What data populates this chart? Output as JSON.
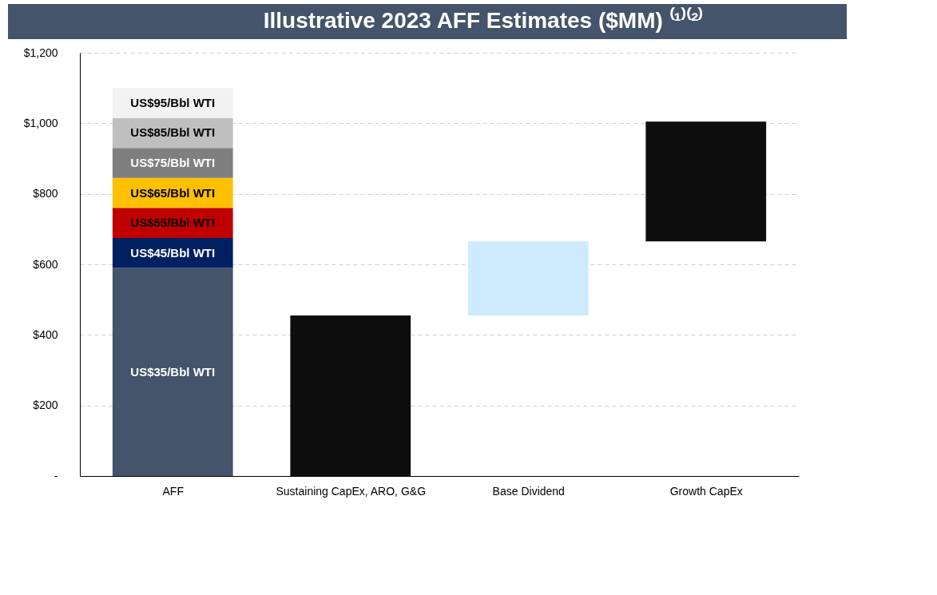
{
  "chart_data": {
    "type": "bar",
    "title": "Illustrative 2023 AFF Estimates ($MM) ⁽¹⁾⁽²⁾",
    "stacked": true,
    "grid": "y",
    "categories": [
      "AFF",
      "Sustaining CapEx, ARO, G&G",
      "Base Dividend",
      "Growth CapEx"
    ],
    "ylim": [
      0,
      1200
    ],
    "yticks": [
      {
        "value": 0,
        "label": "-"
      },
      {
        "value": 200,
        "label": "$200"
      },
      {
        "value": 400,
        "label": "$400"
      },
      {
        "value": 600,
        "label": "$600"
      },
      {
        "value": 800,
        "label": "$800"
      },
      {
        "value": 1000,
        "label": "$1,000"
      },
      {
        "value": 1200,
        "label": "$1,200"
      }
    ],
    "series": [
      {
        "name": "US$35/Bbl WTI",
        "color": "#44546a",
        "values": [
          590,
          null,
          null,
          null
        ]
      },
      {
        "name": "US$45/Bbl WTI",
        "color": "#002060",
        "values": [
          85,
          null,
          null,
          null
        ]
      },
      {
        "name": "US$55/Bbl WTI",
        "color": "#c00000",
        "values": [
          85,
          null,
          null,
          null
        ]
      },
      {
        "name": "US$65/Bbl WTI",
        "color": "#ffc000",
        "values": [
          85,
          null,
          null,
          null
        ]
      },
      {
        "name": "US$75/Bbl WTI",
        "color": "#7f7f7f",
        "values": [
          85,
          null,
          null,
          null
        ]
      },
      {
        "name": "US$85/Bbl WTI",
        "color": "#bfbfbf",
        "values": [
          85,
          null,
          null,
          null
        ]
      },
      {
        "name": "US$95/Bbl WTI",
        "color": "#f2f2f2",
        "values": [
          85,
          null,
          null,
          null
        ]
      },
      {
        "colors": [
          null,
          "#0d0d0d",
          "#cdebfc",
          "#0d0d0d"
        ],
        "values": [
          null,
          455,
          210,
          340
        ],
        "base": [
          null,
          0,
          455,
          665
        ]
      }
    ]
  }
}
